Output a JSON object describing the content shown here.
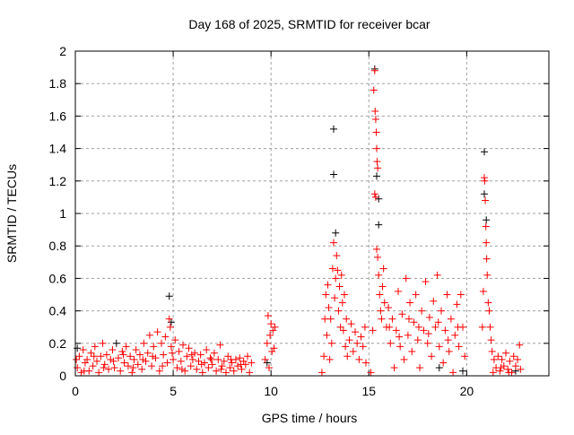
{
  "chart_data": {
    "type": "scatter",
    "title": "Day 168 of 2025, SRMTID for receiver bcar",
    "xlabel": "GPS time / hours",
    "ylabel": "SRMTID / TECUs",
    "xlim": [
      0,
      24.2
    ],
    "ylim": [
      0,
      2
    ],
    "xticks": [
      0,
      5,
      10,
      15,
      20
    ],
    "yticks": [
      0,
      0.2,
      0.4,
      0.6,
      0.8,
      1,
      1.2,
      1.4,
      1.6,
      1.8,
      2
    ],
    "ytick_labels": [
      "0",
      "0.2",
      "0.4",
      "0.6",
      "0.8",
      "1",
      "1.2",
      "1.4",
      "1.6",
      "1.8",
      "2"
    ],
    "grid": true,
    "legend": "none",
    "series": [
      {
        "name": "black",
        "color": "#000000",
        "points": [
          [
            0.1,
            0.17
          ],
          [
            2.1,
            0.2
          ],
          [
            4.8,
            0.49
          ],
          [
            4.9,
            0.33
          ],
          [
            13.2,
            1.52
          ],
          [
            13.2,
            1.24
          ],
          [
            13.3,
            0.88
          ],
          [
            15.3,
            1.89
          ],
          [
            15.4,
            1.23
          ],
          [
            15.5,
            1.09
          ],
          [
            15.5,
            0.93
          ],
          [
            20.9,
            1.38
          ],
          [
            21.0,
            0.96
          ],
          [
            20.9,
            1.12
          ],
          [
            18.6,
            0.05
          ],
          [
            19.8,
            0.03
          ],
          [
            9.8,
            0.08
          ],
          [
            22.5,
            0.03
          ]
        ]
      },
      {
        "name": "red",
        "color": "#ff0000",
        "points": [
          [
            0.1,
            0.05
          ],
          [
            0.2,
            0.12
          ],
          [
            0.3,
            0.02
          ],
          [
            0.4,
            0.16
          ],
          [
            0.5,
            0.08
          ],
          [
            0.6,
            0.1
          ],
          [
            0.7,
            0.03
          ],
          [
            0.8,
            0.14
          ],
          [
            0.9,
            0.06
          ],
          [
            1.0,
            0.18
          ],
          [
            1.1,
            0.09
          ],
          [
            1.2,
            0.02
          ],
          [
            1.3,
            0.12
          ],
          [
            1.4,
            0.2
          ],
          [
            1.5,
            0.07
          ],
          [
            1.6,
            0.13
          ],
          [
            1.7,
            0.04
          ],
          [
            1.8,
            0.1
          ],
          [
            1.9,
            0.16
          ],
          [
            2.0,
            0.05
          ],
          [
            2.2,
            0.11
          ],
          [
            2.3,
            0.03
          ],
          [
            2.4,
            0.15
          ],
          [
            2.5,
            0.08
          ],
          [
            2.6,
            0.18
          ],
          [
            2.7,
            0.06
          ],
          [
            2.8,
            0.12
          ],
          [
            2.9,
            0.02
          ],
          [
            3.0,
            0.1
          ],
          [
            3.1,
            0.16
          ],
          [
            3.2,
            0.07
          ],
          [
            3.3,
            0.13
          ],
          [
            3.4,
            0.04
          ],
          [
            3.5,
            0.2
          ],
          [
            3.6,
            0.09
          ],
          [
            3.7,
            0.14
          ],
          [
            3.8,
            0.25
          ],
          [
            3.9,
            0.06
          ],
          [
            4.0,
            0.18
          ],
          [
            4.1,
            0.11
          ],
          [
            4.2,
            0.27
          ],
          [
            4.3,
            0.03
          ],
          [
            4.4,
            0.2
          ],
          [
            4.5,
            0.13
          ],
          [
            4.6,
            0.24
          ],
          [
            4.7,
            0.08
          ],
          [
            4.8,
            0.35
          ],
          [
            4.85,
            0.3
          ],
          [
            4.9,
            0.18
          ],
          [
            5.0,
            0.1
          ],
          [
            5.1,
            0.22
          ],
          [
            5.2,
            0.05
          ],
          [
            5.3,
            0.15
          ],
          [
            5.4,
            0.09
          ],
          [
            5.5,
            0.19
          ],
          [
            5.6,
            0.03
          ],
          [
            5.7,
            0.12
          ],
          [
            5.8,
            0.17
          ],
          [
            5.9,
            0.06
          ],
          [
            6.0,
            0.1
          ],
          [
            6.1,
            0.14
          ],
          [
            6.2,
            0.04
          ],
          [
            6.3,
            0.09
          ],
          [
            6.4,
            0.13
          ],
          [
            6.5,
            0.02
          ],
          [
            6.6,
            0.08
          ],
          [
            6.7,
            0.16
          ],
          [
            6.8,
            0.05
          ],
          [
            6.9,
            0.11
          ],
          [
            7.0,
            0.07
          ],
          [
            7.1,
            0.14
          ],
          [
            7.2,
            0.03
          ],
          [
            7.3,
            0.1
          ],
          [
            7.4,
            0.19
          ],
          [
            7.5,
            0.06
          ],
          [
            7.6,
            0.09
          ],
          [
            7.7,
            0.02
          ],
          [
            7.8,
            0.12
          ],
          [
            7.9,
            0.05
          ],
          [
            8.0,
            0.08
          ],
          [
            8.1,
            0.03
          ],
          [
            8.2,
            0.1
          ],
          [
            8.3,
            0.06
          ],
          [
            8.4,
            0.11
          ],
          [
            8.5,
            0.04
          ],
          [
            8.6,
            0.09
          ],
          [
            8.7,
            0.07
          ],
          [
            8.8,
            0.12
          ],
          [
            8.9,
            0.02
          ],
          [
            9.0,
            0.08
          ],
          [
            0.05,
            0.1
          ],
          [
            0.45,
            0.03
          ],
          [
            0.95,
            0.12
          ],
          [
            1.45,
            0.05
          ],
          [
            1.95,
            0.09
          ],
          [
            2.45,
            0.13
          ],
          [
            2.95,
            0.05
          ],
          [
            3.45,
            0.1
          ],
          [
            3.95,
            0.12
          ],
          [
            4.45,
            0.06
          ],
          [
            4.95,
            0.14
          ],
          [
            5.45,
            0.04
          ],
          [
            5.95,
            0.13
          ],
          [
            6.45,
            0.07
          ],
          [
            6.95,
            0.1
          ],
          [
            7.45,
            0.04
          ],
          [
            7.95,
            0.1
          ],
          [
            8.45,
            0.07
          ],
          [
            9.7,
            0.1
          ],
          [
            9.8,
            0.2
          ],
          [
            9.85,
            0.37
          ],
          [
            9.9,
            0.05
          ],
          [
            9.95,
            0.25
          ],
          [
            10.0,
            0.32
          ],
          [
            10.05,
            0.15
          ],
          [
            10.1,
            0.28
          ],
          [
            10.15,
            0.17
          ],
          [
            10.2,
            0.3
          ],
          [
            12.6,
            0.02
          ],
          [
            12.7,
            0.12
          ],
          [
            12.75,
            0.35
          ],
          [
            12.8,
            0.5
          ],
          [
            12.85,
            0.25
          ],
          [
            12.9,
            0.56
          ],
          [
            12.95,
            0.42
          ],
          [
            13.0,
            0.1
          ],
          [
            13.05,
            0.35
          ],
          [
            13.1,
            0.2
          ],
          [
            13.15,
            0.66
          ],
          [
            13.2,
            0.82
          ],
          [
            13.25,
            0.48
          ],
          [
            13.3,
            0.6
          ],
          [
            13.35,
            0.74
          ],
          [
            13.4,
            0.65
          ],
          [
            13.45,
            0.4
          ],
          [
            13.5,
            0.55
          ],
          [
            13.55,
            0.3
          ],
          [
            13.6,
            0.62
          ],
          [
            13.65,
            0.45
          ],
          [
            13.7,
            0.28
          ],
          [
            13.75,
            0.5
          ],
          [
            13.8,
            0.18
          ],
          [
            13.85,
            0.35
          ],
          [
            13.9,
            0.12
          ],
          [
            14.0,
            0.22
          ],
          [
            14.1,
            0.32
          ],
          [
            14.2,
            0.15
          ],
          [
            14.3,
            0.27
          ],
          [
            14.4,
            0.2
          ],
          [
            14.5,
            0.1
          ],
          [
            14.6,
            0.24
          ],
          [
            14.7,
            0.18
          ],
          [
            14.8,
            0.3
          ],
          [
            14.85,
            0.08
          ],
          [
            15.1,
            0.02
          ],
          [
            15.2,
            0.28
          ],
          [
            15.25,
            1.76
          ],
          [
            15.3,
            1.88
          ],
          [
            15.32,
            1.63
          ],
          [
            15.35,
            1.58
          ],
          [
            15.38,
            1.5
          ],
          [
            15.4,
            1.4
          ],
          [
            15.42,
            1.32
          ],
          [
            15.45,
            1.28
          ],
          [
            15.3,
            1.12
          ],
          [
            15.35,
            1.1
          ],
          [
            15.4,
            0.78
          ],
          [
            15.45,
            0.73
          ],
          [
            15.5,
            0.62
          ],
          [
            15.55,
            0.5
          ],
          [
            15.6,
            0.4
          ],
          [
            15.65,
            0.35
          ],
          [
            15.7,
            0.55
          ],
          [
            15.75,
            0.66
          ],
          [
            15.8,
            0.45
          ],
          [
            15.9,
            0.3
          ],
          [
            16.0,
            0.42
          ],
          [
            16.1,
            0.2
          ],
          [
            16.2,
            0.35
          ],
          [
            16.3,
            0.05
          ],
          [
            16.4,
            0.28
          ],
          [
            16.5,
            0.52
          ],
          [
            16.6,
            0.18
          ],
          [
            16.7,
            0.38
          ],
          [
            16.8,
            0.1
          ],
          [
            16.9,
            0.6
          ],
          [
            17.0,
            0.25
          ],
          [
            17.1,
            0.45
          ],
          [
            17.2,
            0.15
          ],
          [
            17.3,
            0.33
          ],
          [
            17.4,
            0.5
          ],
          [
            17.5,
            0.22
          ],
          [
            17.6,
            0.05
          ],
          [
            17.7,
            0.4
          ],
          [
            17.8,
            0.28
          ],
          [
            17.9,
            0.58
          ],
          [
            18.0,
            0.2
          ],
          [
            18.1,
            0.36
          ],
          [
            18.2,
            0.12
          ],
          [
            18.3,
            0.46
          ],
          [
            18.4,
            0.3
          ],
          [
            18.5,
            0.62
          ],
          [
            18.6,
            0.18
          ],
          [
            18.7,
            0.4
          ],
          [
            18.8,
            0.08
          ],
          [
            18.9,
            0.28
          ],
          [
            19.0,
            0.5
          ],
          [
            19.1,
            0.15
          ],
          [
            19.2,
            0.35
          ],
          [
            19.3,
            0.02
          ],
          [
            19.4,
            0.25
          ],
          [
            19.5,
            0.44
          ],
          [
            19.6,
            0.18
          ],
          [
            19.7,
            0.5
          ],
          [
            19.8,
            0.3
          ],
          [
            19.9,
            0.12
          ],
          [
            16.05,
            0.3
          ],
          [
            16.55,
            0.24
          ],
          [
            17.05,
            0.35
          ],
          [
            17.55,
            0.3
          ],
          [
            18.05,
            0.26
          ],
          [
            18.55,
            0.33
          ],
          [
            19.05,
            0.22
          ],
          [
            19.55,
            0.3
          ],
          [
            20.8,
            0.3
          ],
          [
            20.85,
            0.52
          ],
          [
            20.9,
            1.22
          ],
          [
            20.92,
            1.2
          ],
          [
            20.95,
            1.08
          ],
          [
            20.98,
            0.92
          ],
          [
            21.0,
            0.82
          ],
          [
            21.02,
            0.72
          ],
          [
            21.05,
            0.62
          ],
          [
            21.1,
            0.45
          ],
          [
            21.15,
            0.4
          ],
          [
            21.2,
            0.3
          ],
          [
            21.25,
            0.22
          ],
          [
            21.3,
            0.15
          ],
          [
            21.4,
            0.1
          ],
          [
            21.5,
            0.05
          ],
          [
            21.6,
            0.12
          ],
          [
            21.7,
            0.03
          ],
          [
            21.8,
            0.1
          ],
          [
            21.9,
            0.06
          ],
          [
            22.0,
            0.14
          ],
          [
            22.1,
            0.04
          ],
          [
            22.2,
            0.09
          ],
          [
            22.3,
            0.02
          ],
          [
            22.4,
            0.12
          ],
          [
            22.5,
            0.06
          ],
          [
            22.6,
            0.1
          ],
          [
            22.7,
            0.19
          ],
          [
            22.75,
            0.04
          ],
          [
            21.35,
            0.02
          ],
          [
            21.75,
            0.05
          ],
          [
            22.15,
            0.02
          ]
        ]
      }
    ]
  }
}
